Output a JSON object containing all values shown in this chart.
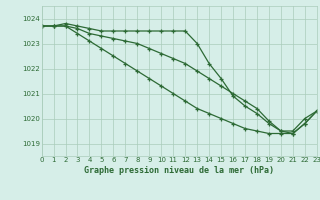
{
  "title": "Graphe pression niveau de la mer (hPa)",
  "background_color": "#d6eee8",
  "grid_color": "#aaccbb",
  "line_color": "#2d6a35",
  "xlim": [
    0,
    23
  ],
  "ylim": [
    1018.5,
    1024.5
  ],
  "yticks": [
    1019,
    1020,
    1021,
    1022,
    1023,
    1024
  ],
  "xticks": [
    0,
    1,
    2,
    3,
    4,
    5,
    6,
    7,
    8,
    9,
    10,
    11,
    12,
    13,
    14,
    15,
    16,
    17,
    18,
    19,
    20,
    21,
    22,
    23
  ],
  "series1_x": [
    0,
    1,
    2,
    3,
    4,
    5,
    6,
    7,
    8,
    9,
    10,
    11,
    12,
    13,
    14,
    15,
    16,
    17,
    18,
    19,
    20,
    21,
    22,
    23
  ],
  "series1_y": [
    1023.7,
    1023.7,
    1023.8,
    1023.7,
    1023.6,
    1023.5,
    1023.5,
    1023.5,
    1023.5,
    1023.5,
    1023.5,
    1023.5,
    1023.5,
    1023.0,
    1022.2,
    1021.6,
    1020.9,
    1020.5,
    1020.2,
    1019.8,
    1019.5,
    1019.5,
    1020.0,
    1020.3
  ],
  "series2_x": [
    0,
    1,
    2,
    3,
    4,
    5,
    6,
    7,
    8,
    9,
    10,
    11,
    12,
    13,
    14,
    15,
    16,
    17,
    18,
    19,
    20,
    21,
    22,
    23
  ],
  "series2_y": [
    1023.7,
    1023.7,
    1023.7,
    1023.6,
    1023.4,
    1023.3,
    1023.2,
    1023.1,
    1023.0,
    1022.8,
    1022.6,
    1022.4,
    1022.2,
    1021.9,
    1021.6,
    1021.3,
    1021.0,
    1020.7,
    1020.4,
    1019.9,
    1019.5,
    1019.4,
    1019.8,
    1020.3
  ],
  "series3_x": [
    0,
    1,
    2,
    3,
    4,
    5,
    6,
    7,
    8,
    9,
    10,
    11,
    12,
    13,
    14,
    15,
    16,
    17,
    18,
    19,
    20,
    21,
    22,
    23
  ],
  "series3_y": [
    1023.7,
    1023.7,
    1023.7,
    1023.4,
    1023.1,
    1022.8,
    1022.5,
    1022.2,
    1021.9,
    1021.6,
    1021.3,
    1021.0,
    1020.7,
    1020.4,
    1020.2,
    1020.0,
    1019.8,
    1019.6,
    1019.5,
    1019.4,
    1019.4,
    1019.4,
    1019.8,
    1020.3
  ]
}
